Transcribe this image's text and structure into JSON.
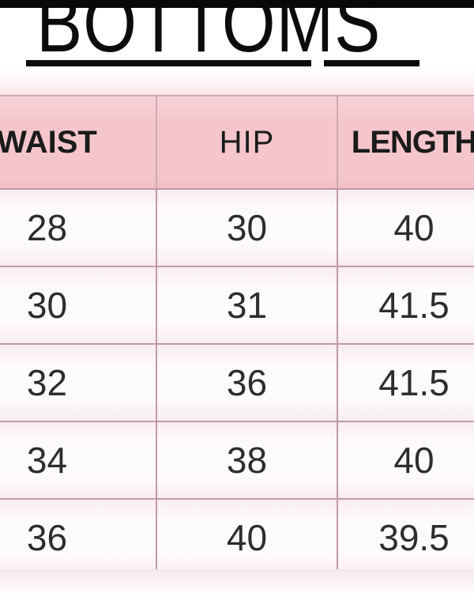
{
  "title": "BOTTOMS",
  "chart_data": {
    "type": "table",
    "title": "BOTTOMS",
    "columns": [
      "WAIST",
      "HIP",
      "LENGTH"
    ],
    "rows": [
      [
        "28",
        "30",
        "40"
      ],
      [
        "30",
        "31",
        "41.5"
      ],
      [
        "32",
        "36",
        "41.5"
      ],
      [
        "34",
        "38",
        "40"
      ],
      [
        "36",
        "40",
        "39.5"
      ]
    ]
  },
  "colors": {
    "top_bar": "#080808",
    "title_text": "#0c0c0c",
    "header_bg": "#f4c6cc",
    "cell_bg": "#fefbfc",
    "grid_line": "#c29aa5",
    "header_text": "#1b1b1b",
    "cell_text": "#2d2d2d",
    "footer_bg": "#f3e7eb"
  }
}
